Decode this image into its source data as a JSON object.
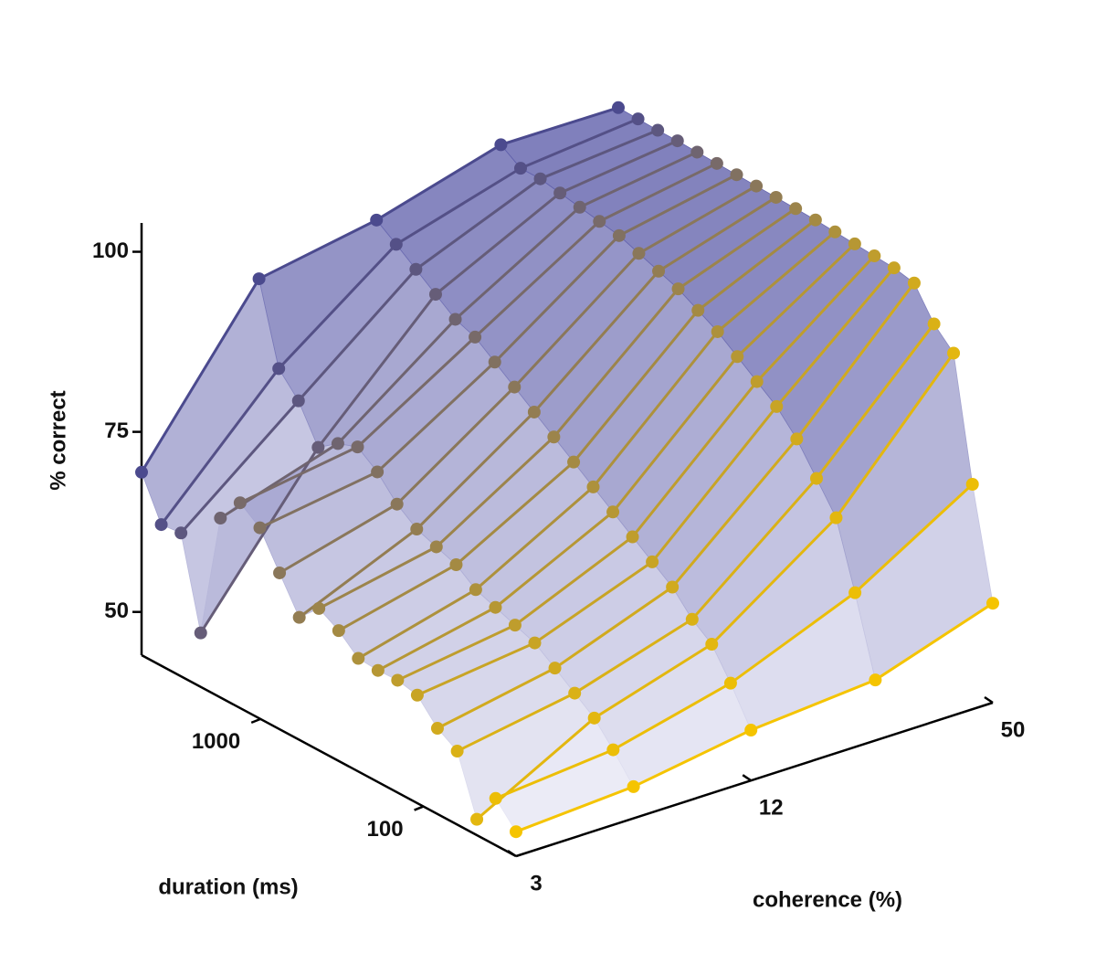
{
  "chart_data": {
    "type": "surface3d",
    "z_label": "% correct",
    "duration_label": "duration (ms)",
    "coherence_label": "coherence (%)",
    "duration_lim": [
      27,
      5370
    ],
    "duration_ticks": [
      1000,
      100
    ],
    "duration_log": true,
    "coherence_lim": [
      3,
      50
    ],
    "coherence_ticks": [
      3,
      12,
      50
    ],
    "coherence_log": true,
    "zlim": [
      44,
      104
    ],
    "zticks": [
      50,
      75,
      100
    ],
    "coherence": [
      3,
      6,
      12,
      25,
      50
    ],
    "surface": true,
    "series": [
      {
        "duration": 5370,
        "color": "#4b4a8e",
        "values": [
          69.4,
          91,
          93.9,
          98.8,
          98.7
        ]
      },
      {
        "duration": 4064,
        "color": "#545087",
        "values": [
          63.6,
          80,
          92,
          97,
          98.6
        ]
      },
      {
        "duration": 3076,
        "color": "#5d577f",
        "values": [
          63.9,
          77,
          90,
          97,
          98.5
        ]
      },
      {
        "duration": 2328,
        "color": "#665d78",
        "values": [
          51.5,
          72,
          88,
          96.5,
          98.5
        ]
      },
      {
        "duration": 1762,
        "color": "#6f6470",
        "values": [
          68.9,
          74,
          86,
          96,
          98.4
        ]
      },
      {
        "duration": 1334,
        "color": "#786a69",
        "values": [
          72.5,
          75,
          85,
          95.5,
          98.3
        ]
      },
      {
        "duration": 1009,
        "color": "#817161",
        "values": [
          70.5,
          73,
          83,
          95,
          98.2
        ]
      },
      {
        "duration": 764,
        "color": "#8a775a",
        "values": [
          65.7,
          70,
          81,
          94,
          98.1
        ]
      },
      {
        "duration": 578,
        "color": "#937d52",
        "values": [
          61,
          68,
          79,
          93,
          98
        ]
      },
      {
        "duration": 438,
        "color": "#9c844b",
        "values": [
          63.7,
          67,
          77,
          92,
          97.9
        ]
      },
      {
        "duration": 331,
        "color": "#a48a43",
        "values": [
          62.1,
          66,
          75,
          90.5,
          97.8
        ]
      },
      {
        "duration": 251,
        "color": "#ad913c",
        "values": [
          59.7,
          64,
          73,
          89,
          97.6
        ]
      },
      {
        "duration": 190,
        "color": "#b69734",
        "values": [
          59.5,
          63,
          71,
          87,
          97.4
        ]
      },
      {
        "duration": 144,
        "color": "#bf9d2d",
        "values": [
          59.6,
          62,
          69,
          85,
          97.2
        ]
      },
      {
        "duration": 109,
        "color": "#c8a425",
        "values": [
          59,
          61,
          67,
          83,
          97
        ]
      },
      {
        "duration": 82,
        "color": "#d1aa1e",
        "values": [
          55.9,
          59,
          65,
          80,
          96.4
        ]
      },
      {
        "duration": 62,
        "color": "#dab116",
        "values": [
          54.2,
          57,
          62,
          76,
          92.2
        ]
      },
      {
        "duration": 47,
        "color": "#e3b70f",
        "values": [
          46.2,
          55,
          60,
          72,
          89.6
        ]
      },
      {
        "duration": 36,
        "color": "#ecbe07",
        "values": [
          50.5,
          52,
          56,
          63,
          72.8
        ]
      },
      {
        "duration": 27,
        "color": "#f5c400",
        "values": [
          47.4,
          48.4,
          51,
          52.4,
          57.8
        ]
      }
    ]
  }
}
